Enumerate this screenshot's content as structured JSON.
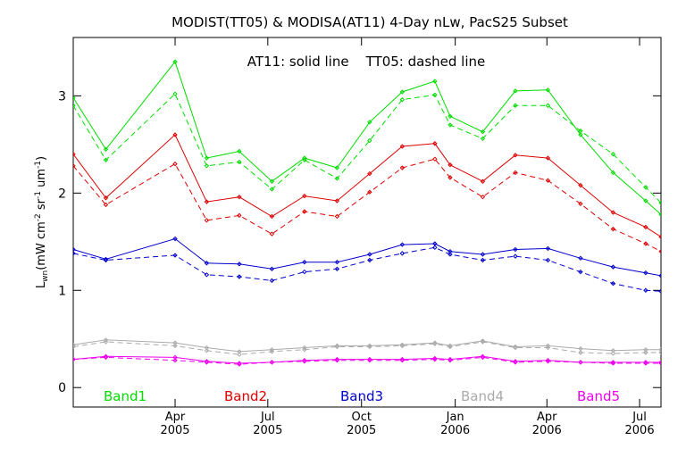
{
  "chart_data": {
    "type": "line",
    "title": "MODIST(TT05) & MODISA(AT11) 4-Day nLw, PacS25 Subset",
    "annotation": "AT11: solid line    TT05: dashed line",
    "ylabel_main": "L",
    "ylabel_sub": "wn",
    "ylabel_units_a": "(mW cm",
    "ylabel_units_exp1": "-2",
    "ylabel_units_b": " sr",
    "ylabel_units_exp2": "-1",
    "ylabel_units_c": " um",
    "ylabel_units_exp3": "-1",
    "ylabel_units_d": ")",
    "ylim": [
      -0.2,
      3.6
    ],
    "yticks": [
      {
        "v": 0,
        "label": "0"
      },
      {
        "v": 1,
        "label": "1"
      },
      {
        "v": 2,
        "label": "2"
      },
      {
        "v": 3,
        "label": "3"
      }
    ],
    "xlim": [
      "2004-12-22",
      "2006-07-22"
    ],
    "xticks": [
      {
        "date": "2005-04-01",
        "label1": "Apr",
        "label2": "2005"
      },
      {
        "date": "2005-07-01",
        "label1": "Jul",
        "label2": "2005"
      },
      {
        "date": "2005-10-01",
        "label1": "Oct",
        "label2": "2005"
      },
      {
        "date": "2006-01-01",
        "label1": "Jan",
        "label2": "2006"
      },
      {
        "date": "2006-04-01",
        "label1": "Apr",
        "label2": "2006"
      },
      {
        "date": "2006-07-01",
        "label1": "Jul",
        "label2": "2006"
      }
    ],
    "x_dates": [
      "2004-12-22",
      "2005-01-23",
      "2005-04-01",
      "2005-05-02",
      "2005-06-03",
      "2005-07-05",
      "2005-08-06",
      "2005-09-07",
      "2005-10-09",
      "2005-11-10",
      "2005-12-12",
      "2005-12-27",
      "2006-01-28",
      "2006-03-01",
      "2006-04-02",
      "2006-05-04",
      "2006-06-05",
      "2006-07-07",
      "2006-07-22"
    ],
    "bands": [
      {
        "name": "Band1",
        "color": "#00dd00",
        "at11": [
          2.98,
          2.45,
          3.35,
          2.36,
          2.43,
          2.12,
          2.36,
          2.26,
          2.73,
          3.04,
          3.15,
          2.79,
          2.63,
          3.05,
          3.06,
          2.6,
          2.21,
          1.92,
          1.78
        ],
        "tt05": [
          2.9,
          2.34,
          3.02,
          2.28,
          2.32,
          2.04,
          2.34,
          2.15,
          2.54,
          2.96,
          3.01,
          2.7,
          2.56,
          2.9,
          2.9,
          2.64,
          2.4,
          2.06,
          1.9
        ]
      },
      {
        "name": "Band2",
        "color": "#dd0000",
        "at11": [
          2.4,
          1.95,
          2.6,
          1.91,
          1.96,
          1.76,
          1.97,
          1.92,
          2.2,
          2.48,
          2.51,
          2.29,
          2.12,
          2.39,
          2.36,
          2.08,
          1.8,
          1.65,
          1.55
        ],
        "tt05": [
          2.28,
          1.88,
          2.3,
          1.72,
          1.77,
          1.58,
          1.81,
          1.76,
          2.01,
          2.26,
          2.35,
          2.16,
          1.96,
          2.21,
          2.13,
          1.89,
          1.63,
          1.48,
          1.4
        ]
      },
      {
        "name": "Band3",
        "color": "#0000cc",
        "at11": [
          1.42,
          1.32,
          1.53,
          1.28,
          1.27,
          1.22,
          1.29,
          1.29,
          1.37,
          1.47,
          1.48,
          1.4,
          1.37,
          1.42,
          1.43,
          1.33,
          1.24,
          1.18,
          1.15
        ],
        "tt05": [
          1.38,
          1.31,
          1.36,
          1.16,
          1.14,
          1.1,
          1.19,
          1.22,
          1.31,
          1.38,
          1.44,
          1.37,
          1.31,
          1.35,
          1.31,
          1.19,
          1.07,
          1.0,
          0.99
        ]
      },
      {
        "name": "Band4",
        "color": "#aaaaaa",
        "at11": [
          0.44,
          0.49,
          0.46,
          0.41,
          0.37,
          0.39,
          0.41,
          0.43,
          0.43,
          0.44,
          0.46,
          0.43,
          0.48,
          0.42,
          0.43,
          0.4,
          0.38,
          0.39,
          0.39
        ],
        "tt05": [
          0.42,
          0.47,
          0.43,
          0.38,
          0.34,
          0.37,
          0.39,
          0.42,
          0.42,
          0.43,
          0.45,
          0.42,
          0.47,
          0.41,
          0.41,
          0.36,
          0.35,
          0.36,
          0.36
        ]
      },
      {
        "name": "Band5",
        "color": "#ee00ee",
        "at11": [
          0.29,
          0.32,
          0.31,
          0.27,
          0.25,
          0.26,
          0.28,
          0.29,
          0.29,
          0.29,
          0.3,
          0.29,
          0.32,
          0.27,
          0.28,
          0.26,
          0.26,
          0.26,
          0.26
        ],
        "tt05": [
          0.29,
          0.31,
          0.28,
          0.26,
          0.24,
          0.26,
          0.27,
          0.28,
          0.28,
          0.28,
          0.29,
          0.28,
          0.31,
          0.26,
          0.27,
          0.26,
          0.25,
          0.25,
          0.25
        ]
      }
    ]
  }
}
